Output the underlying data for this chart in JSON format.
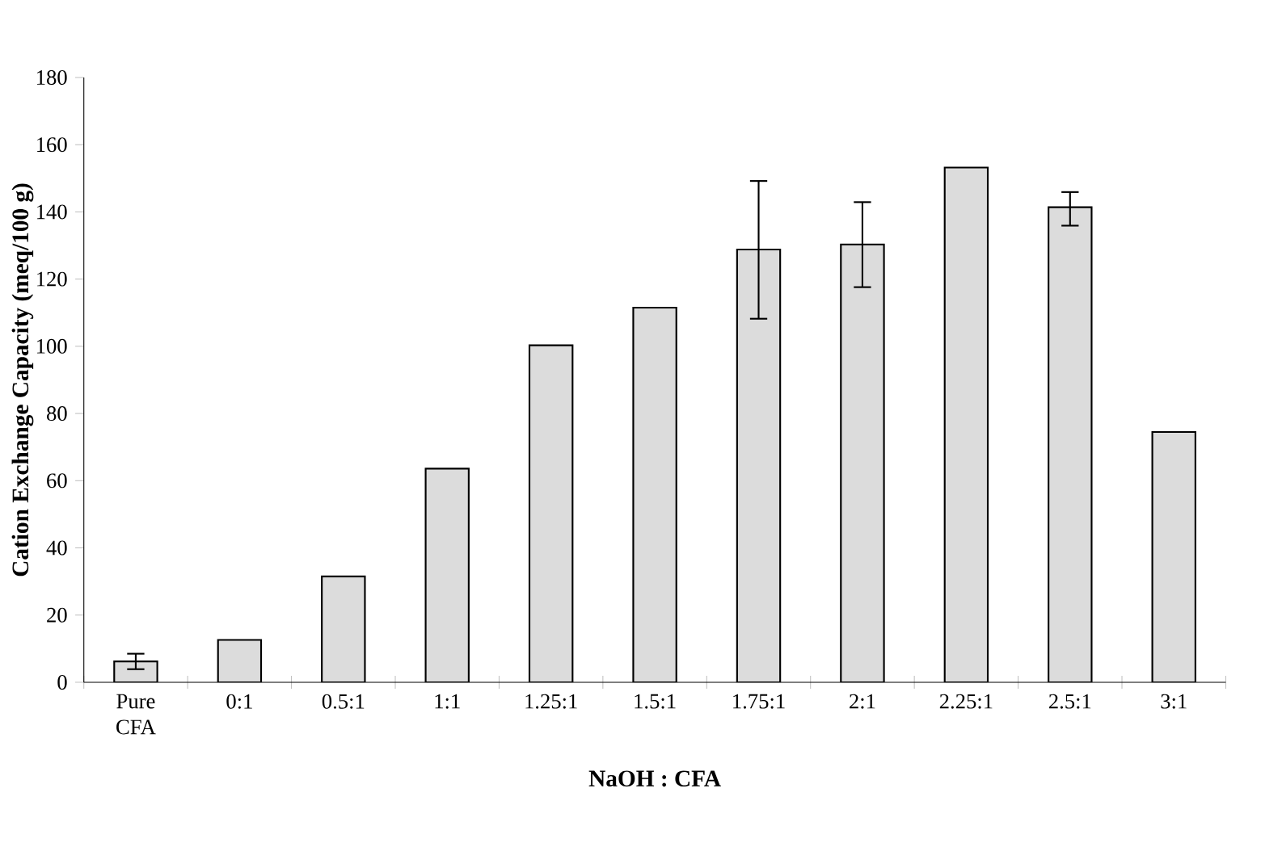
{
  "chart_data": {
    "type": "bar",
    "xlabel": "NaOH : CFA",
    "ylabel": "Cation Exchange Capacity (meq/100 g)",
    "categories": [
      "Pure CFA",
      "0:1",
      "0.5:1",
      "1:1",
      "1.25:1",
      "1.5:1",
      "1.75:1",
      "2:1",
      "2.25:1",
      "2.5:1",
      "3:1"
    ],
    "values": [
      6.2,
      12.6,
      31.5,
      63.6,
      100.3,
      111.5,
      128.8,
      130.3,
      153.2,
      141.4,
      74.5
    ],
    "errors": [
      [
        3.9,
        8.5
      ],
      null,
      null,
      null,
      null,
      null,
      [
        108.2,
        149.2
      ],
      [
        117.6,
        142.9
      ],
      null,
      [
        135.9,
        145.9
      ],
      null
    ],
    "color": "#dcdcdc",
    "ylim": [
      0,
      180
    ],
    "yticks": [
      0,
      20,
      40,
      60,
      80,
      100,
      120,
      140,
      160,
      180
    ]
  }
}
